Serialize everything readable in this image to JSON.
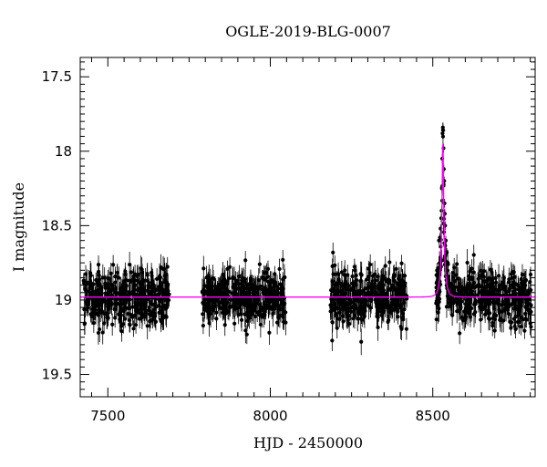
{
  "chart_data": {
    "type": "scatter",
    "title": "OGLE-2019-BLG-0007",
    "xlabel": "HJD - 2450000",
    "ylabel": "I magnitude",
    "xlim": [
      7415,
      8815
    ],
    "ylim": [
      19.65,
      17.37
    ],
    "y_inverted": true,
    "grid": false,
    "legend": "none",
    "x_ticks": [
      7500,
      8000,
      8500
    ],
    "x_tick_labels": [
      "7500",
      "8000",
      "8500"
    ],
    "y_ticks": [
      17.5,
      18,
      18.5,
      19,
      19.5
    ],
    "y_tick_labels": [
      "17.5",
      "18",
      "18.5",
      "19",
      "19.5"
    ],
    "colors": {
      "data": "#000000",
      "model": "#ff00ff"
    },
    "observing_seasons": [
      {
        "start": 7425,
        "end": 7690,
        "mean_mag": 18.98
      },
      {
        "start": 7790,
        "end": 8050,
        "mean_mag": 18.98
      },
      {
        "start": 8185,
        "end": 8420,
        "mean_mag": 18.98
      },
      {
        "start": 8510,
        "end": 8805,
        "mean_mag": 18.98
      }
    ],
    "scatter_sigma_mag": 0.09,
    "typical_error_mag": 0.07,
    "event_points": [
      [
        8519,
        18.6
      ],
      [
        8522,
        18.58
      ],
      [
        8524,
        18.52
      ],
      [
        8526,
        18.45
      ],
      [
        8527,
        18.4
      ],
      [
        8528,
        18.25
      ],
      [
        8529,
        18.05
      ],
      [
        8530,
        17.88
      ],
      [
        8531,
        17.84
      ],
      [
        8532,
        17.86
      ],
      [
        8533,
        17.98
      ],
      [
        8534,
        18.12
      ],
      [
        8535,
        18.2
      ],
      [
        8536,
        18.35
      ],
      [
        8537,
        18.42
      ],
      [
        8538,
        18.5
      ],
      [
        8540,
        18.6
      ],
      [
        8543,
        18.68
      ],
      [
        8547,
        18.76
      ]
    ],
    "model": {
      "type": "line",
      "baseline_mag": 18.98,
      "peak_time": 8531,
      "peak_mag": 17.89,
      "tE_days": 12,
      "u0": 0.13
    }
  }
}
